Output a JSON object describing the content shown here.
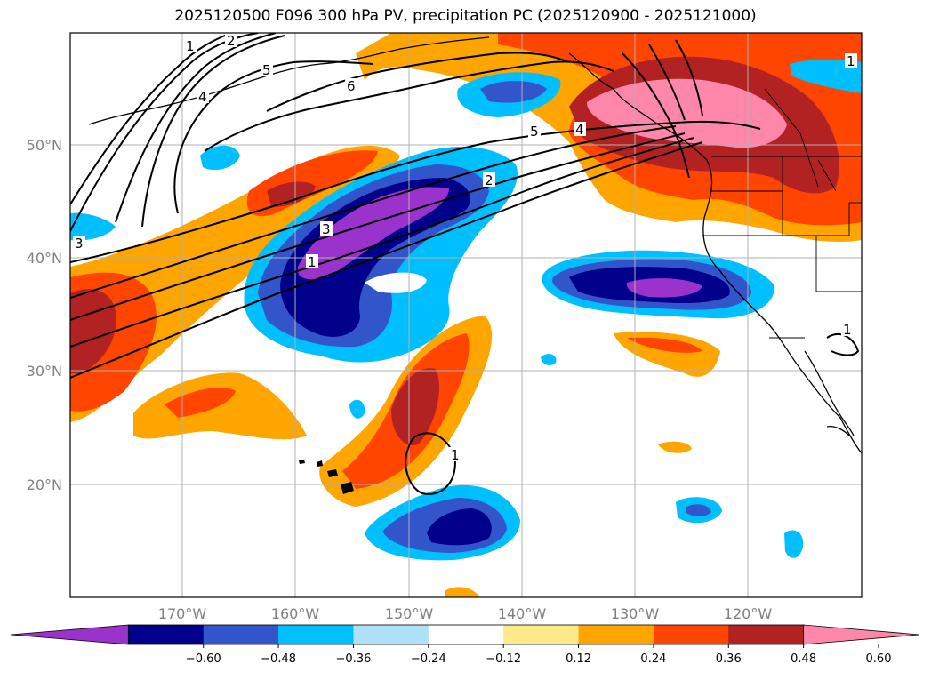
{
  "title": "2025120500 F096 300 hPa PV, precipitation PC (2025120900 - 2025121000)",
  "lat_labels": [
    "50°N",
    "40°N",
    "30°N",
    "20°N"
  ],
  "lon_labels": [
    "170°W",
    "160°W",
    "150°W",
    "140°W",
    "130°W",
    "120°W"
  ],
  "colorbar": {
    "ticks": [
      "−0.60",
      "−0.48",
      "−0.36",
      "−0.24",
      "−0.12",
      "0.12",
      "0.24",
      "0.36",
      "0.48",
      "0.60"
    ],
    "colors": [
      "#9933cc",
      "#00008b",
      "#3355cc",
      "#00bfff",
      "#aee0f8",
      "#ffffff",
      "#ffe98a",
      "#ffa500",
      "#ff4500",
      "#b22222",
      "#ff88aa"
    ]
  },
  "contour_labels": [
    "1",
    "2",
    "5",
    "4",
    "6",
    "3",
    "5",
    "4",
    "2",
    "3",
    "1",
    "1",
    "1",
    "1"
  ]
}
